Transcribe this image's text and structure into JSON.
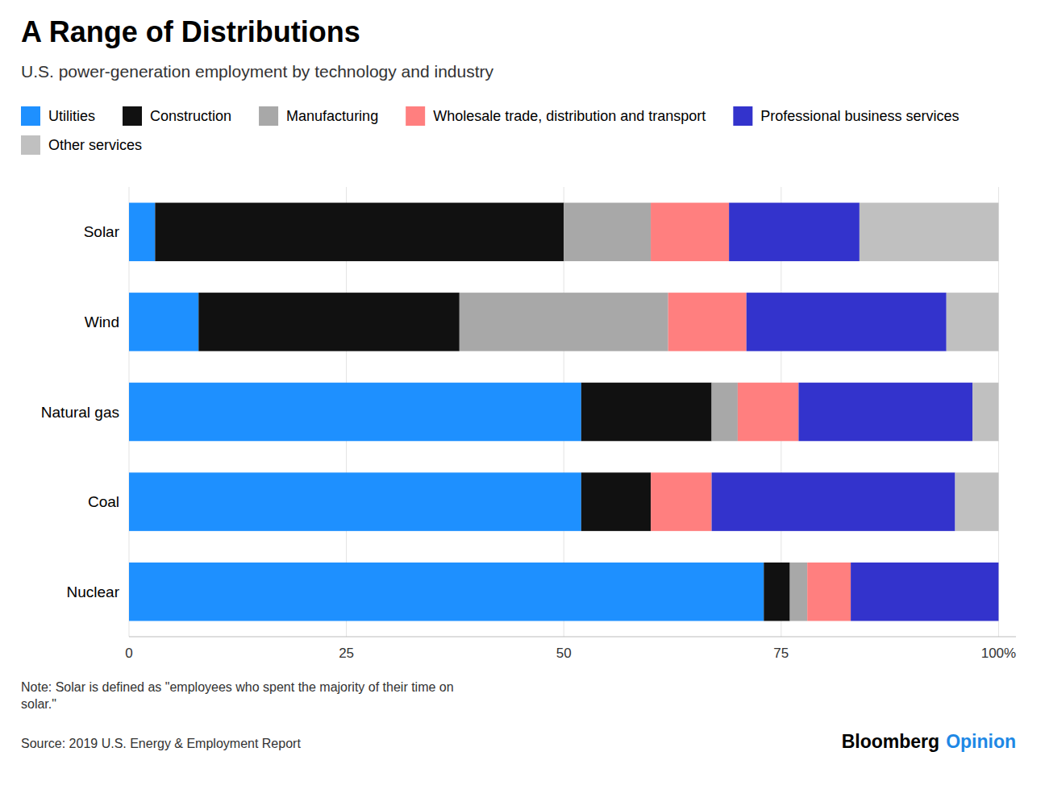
{
  "chart_data": {
    "type": "bar",
    "orientation": "horizontal",
    "stacked": true,
    "title": "A Range of Distributions",
    "subtitle": "U.S. power-generation employment by technology and industry",
    "categories": [
      "Solar",
      "Wind",
      "Natural gas",
      "Coal",
      "Nuclear"
    ],
    "series": [
      {
        "name": "Utilities",
        "color": "#1E90FF",
        "values": [
          3,
          8,
          52,
          52,
          73
        ]
      },
      {
        "name": "Construction",
        "color": "#111111",
        "values": [
          47,
          30,
          15,
          8,
          3
        ]
      },
      {
        "name": "Manufacturing",
        "color": "#A8A8A8",
        "values": [
          10,
          24,
          3,
          0,
          2
        ]
      },
      {
        "name": "Wholesale trade, distribution and transport",
        "color": "#FF7F7F",
        "values": [
          9,
          9,
          7,
          7,
          5
        ]
      },
      {
        "name": "Professional business services",
        "color": "#3333CC",
        "values": [
          15,
          23,
          20,
          28,
          17
        ]
      },
      {
        "name": "Other services",
        "color": "#C0C0C0",
        "values": [
          16,
          6,
          3,
          5,
          0
        ]
      }
    ],
    "xlim": [
      0,
      102
    ],
    "xticks": [
      0,
      25,
      50,
      75,
      {
        "value": 100,
        "label": "100%"
      }
    ],
    "grid": true,
    "legend": "top-left",
    "note": "Note: Solar is defined as \"employees who spent the majority of their time on\nsolar.\"",
    "source": "Source: 2019 U.S. Energy & Employment Report",
    "annotations": [
      {
        "text": "Bloomberg",
        "color": "#000000"
      },
      {
        "text": "Opinion",
        "color": "#1E88E5"
      }
    ]
  }
}
